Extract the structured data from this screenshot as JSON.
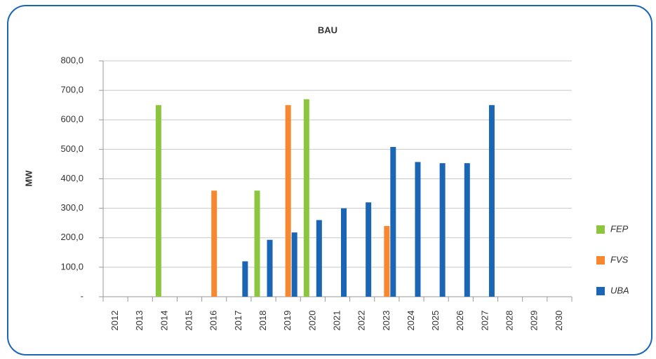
{
  "chart_data": {
    "type": "bar",
    "title": "BAU",
    "y_label": "MW",
    "categories": [
      "2012",
      "2013",
      "2014",
      "2015",
      "2016",
      "2017",
      "2018",
      "2019",
      "2020",
      "2021",
      "2022",
      "2023",
      "2024",
      "2025",
      "2026",
      "2027",
      "2028",
      "2029",
      "2030"
    ],
    "series": [
      {
        "name": "FEP",
        "color": "#8cc63f",
        "values": [
          0,
          0,
          650,
          0,
          0,
          0,
          360,
          0,
          670,
          0,
          0,
          0,
          0,
          0,
          0,
          0,
          0,
          0,
          0
        ]
      },
      {
        "name": "FVS",
        "color": "#f7882f",
        "values": [
          0,
          0,
          0,
          0,
          360,
          0,
          0,
          650,
          0,
          0,
          0,
          240,
          0,
          0,
          0,
          0,
          0,
          0,
          0
        ]
      },
      {
        "name": "UBA",
        "color": "#1a66b5",
        "values": [
          0,
          0,
          0,
          0,
          0,
          120,
          193,
          218,
          260,
          300,
          320,
          508,
          457,
          453,
          453,
          650,
          0,
          0,
          0
        ]
      }
    ],
    "ylim": [
      0,
      800
    ],
    "yticks": [
      {
        "value": 0,
        "label": "-"
      },
      {
        "value": 100,
        "label": "100,0"
      },
      {
        "value": 200,
        "label": "200,0"
      },
      {
        "value": 300,
        "label": "300,0"
      },
      {
        "value": 400,
        "label": "400,0"
      },
      {
        "value": 500,
        "label": "500,0"
      },
      {
        "value": 600,
        "label": "600,0"
      },
      {
        "value": 700,
        "label": "700,0"
      },
      {
        "value": 800,
        "label": "800,0"
      }
    ],
    "grid": true,
    "legend": "right"
  }
}
